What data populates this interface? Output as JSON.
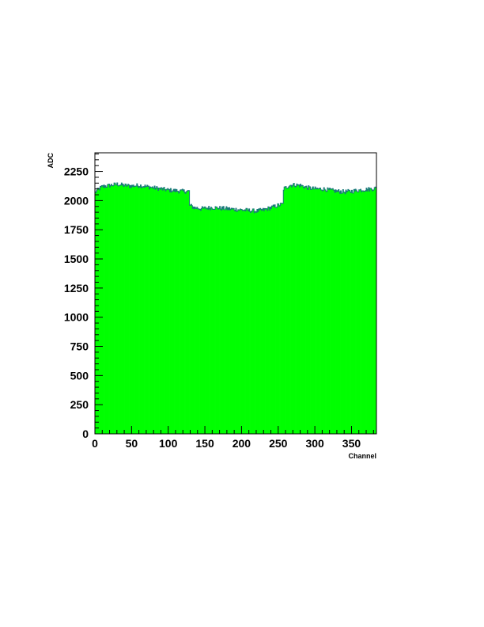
{
  "chart_data": {
    "type": "bar",
    "title": "",
    "xlabel": "Channel",
    "ylabel": "ADC",
    "xlim": [
      0,
      384
    ],
    "ylim": [
      0,
      2410
    ],
    "x_ticks": [
      0,
      50,
      100,
      150,
      200,
      250,
      300,
      350
    ],
    "y_ticks": [
      0,
      250,
      500,
      750,
      1000,
      1250,
      1500,
      1750,
      2000,
      2250
    ],
    "grid": false,
    "legend": "none",
    "bin_width": 1,
    "fill_color": "#00ff00",
    "edge_color": "#1a7a7a",
    "series": [
      {
        "profile": [
          [
            0,
            2070
          ],
          [
            5,
            2100
          ],
          [
            10,
            2120
          ],
          [
            20,
            2130
          ],
          [
            30,
            2140
          ],
          [
            40,
            2130
          ],
          [
            50,
            2125
          ],
          [
            60,
            2130
          ],
          [
            70,
            2120
          ],
          [
            80,
            2110
          ],
          [
            90,
            2100
          ],
          [
            100,
            2090
          ],
          [
            110,
            2085
          ],
          [
            120,
            2080
          ],
          [
            128,
            2080
          ],
          [
            129,
            1960
          ],
          [
            135,
            1940
          ],
          [
            145,
            1930
          ],
          [
            150,
            1935
          ],
          [
            160,
            1940
          ],
          [
            170,
            1935
          ],
          [
            180,
            1930
          ],
          [
            190,
            1925
          ],
          [
            200,
            1920
          ],
          [
            210,
            1915
          ],
          [
            220,
            1910
          ],
          [
            230,
            1920
          ],
          [
            240,
            1940
          ],
          [
            250,
            1960
          ],
          [
            256,
            1970
          ],
          [
            257,
            2100
          ],
          [
            265,
            2130
          ],
          [
            270,
            2135
          ],
          [
            280,
            2130
          ],
          [
            290,
            2110
          ],
          [
            300,
            2100
          ],
          [
            310,
            2100
          ],
          [
            320,
            2090
          ],
          [
            330,
            2080
          ],
          [
            340,
            2075
          ],
          [
            350,
            2080
          ],
          [
            360,
            2090
          ],
          [
            370,
            2095
          ],
          [
            383,
            2105
          ]
        ],
        "noise_amplitude": 18
      }
    ]
  }
}
